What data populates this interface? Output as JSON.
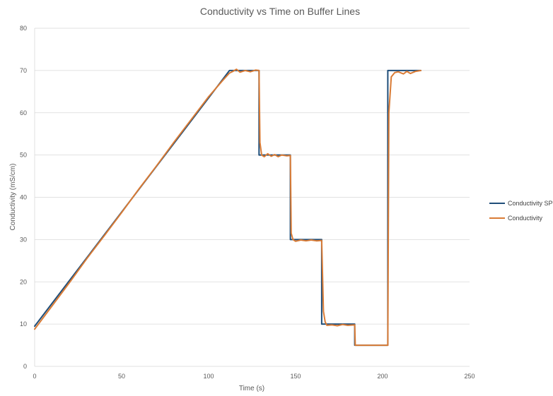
{
  "chart_data": {
    "type": "line",
    "title": "Conductivity vs Time  on Buffer Lines",
    "xlabel": "Time (s)",
    "ylabel": "Conductivity (mS/cm)",
    "xlim": [
      0,
      250
    ],
    "ylim": [
      0,
      80
    ],
    "x_ticks": [
      "0",
      "50",
      "100",
      "150",
      "200",
      "250"
    ],
    "y_ticks": [
      "0",
      "10",
      "20",
      "30",
      "40",
      "50",
      "60",
      "70",
      "80"
    ],
    "grid": "horizontal",
    "legend_position": "right",
    "series": [
      {
        "name": "Conductivity SP",
        "color": "#1f4e79",
        "points": [
          [
            0,
            9.5
          ],
          [
            112,
            70
          ],
          [
            129,
            70
          ],
          [
            129,
            50
          ],
          [
            147,
            50
          ],
          [
            147,
            30
          ],
          [
            165,
            30
          ],
          [
            165,
            10
          ],
          [
            184,
            10
          ],
          [
            184,
            5
          ],
          [
            203,
            5
          ],
          [
            203,
            70
          ],
          [
            222,
            70
          ]
        ]
      },
      {
        "name": "Conductivity",
        "color": "#d97b35",
        "points": [
          [
            0,
            8.8
          ],
          [
            10,
            14.3
          ],
          [
            20,
            19.8
          ],
          [
            30,
            25.5
          ],
          [
            40,
            30.9
          ],
          [
            50,
            36.4
          ],
          [
            60,
            42.0
          ],
          [
            70,
            47.4
          ],
          [
            80,
            53.0
          ],
          [
            90,
            58.4
          ],
          [
            100,
            63.8
          ],
          [
            108,
            67.6
          ],
          [
            112,
            69.4
          ],
          [
            114,
            69.8
          ],
          [
            116,
            70.3
          ],
          [
            118,
            69.6
          ],
          [
            121,
            70.0
          ],
          [
            124,
            69.7
          ],
          [
            127,
            70.1
          ],
          [
            129,
            70.0
          ],
          [
            129.5,
            53
          ],
          [
            130.5,
            50.0
          ],
          [
            132,
            49.6
          ],
          [
            134,
            50.3
          ],
          [
            136,
            49.7
          ],
          [
            138,
            50.1
          ],
          [
            140,
            49.6
          ],
          [
            142,
            50.0
          ],
          [
            145,
            49.8
          ],
          [
            147,
            49.9
          ],
          [
            147.5,
            31.5
          ],
          [
            148.5,
            30.0
          ],
          [
            150,
            29.6
          ],
          [
            153,
            29.9
          ],
          [
            156,
            29.7
          ],
          [
            159,
            29.9
          ],
          [
            162,
            29.7
          ],
          [
            165,
            29.8
          ],
          [
            166,
            13
          ],
          [
            167,
            10.5
          ],
          [
            168,
            9.7
          ],
          [
            171,
            9.8
          ],
          [
            174,
            9.6
          ],
          [
            177,
            9.9
          ],
          [
            180,
            9.7
          ],
          [
            184,
            9.8
          ],
          [
            184.3,
            5.0
          ],
          [
            203,
            5.0
          ],
          [
            203.6,
            60
          ],
          [
            205,
            68.5
          ],
          [
            207,
            69.5
          ],
          [
            209,
            69.7
          ],
          [
            212,
            69.2
          ],
          [
            214,
            69.8
          ],
          [
            216,
            69.3
          ],
          [
            219,
            69.8
          ],
          [
            222,
            70.0
          ]
        ]
      }
    ]
  }
}
